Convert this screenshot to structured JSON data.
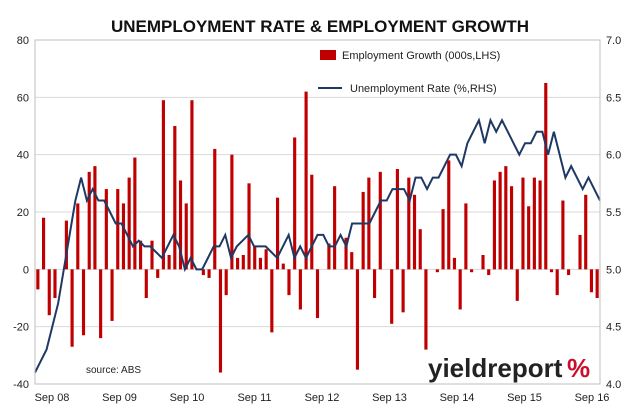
{
  "chart_data": {
    "type": "bar+line",
    "title": "UNEMPLOYMENT RATE & EMPLOYMENT GROWTH",
    "source": "source: ABS",
    "logo": {
      "text": "yieldreport",
      "symbol": "%"
    },
    "x_tick_labels": [
      "Sep 08",
      "Sep 09",
      "Sep 10",
      "Sep 11",
      "Sep 12",
      "Sep 13",
      "Sep 14",
      "Sep 15",
      "Sep 16"
    ],
    "y_left": {
      "min": -40,
      "max": 80,
      "ticks": [
        80,
        60,
        40,
        20,
        0,
        -20,
        -40
      ]
    },
    "y_right": {
      "min": 4.0,
      "max": 7.0,
      "ticks": [
        "7.0",
        "6.5",
        "6.0",
        "5.5",
        "5.0",
        "4.5",
        "4.0"
      ]
    },
    "colors": {
      "bars": "#c00000",
      "line": "#1f3864",
      "grid": "#d9d9d9"
    },
    "series": [
      {
        "name": "Employment Growth (000s,LHS)",
        "type": "bar",
        "values": [
          -7,
          18,
          -16,
          -10,
          0,
          17,
          -27,
          23,
          -23,
          34,
          36,
          -24,
          28,
          -18,
          28,
          23,
          32,
          39,
          10,
          -10,
          10,
          -3,
          59,
          5,
          50,
          31,
          23,
          59,
          0,
          -2,
          -3,
          42,
          -36,
          -9,
          40,
          4,
          5,
          30,
          8,
          4,
          7,
          -22,
          25,
          2,
          -9,
          46,
          -14,
          62,
          33,
          -17,
          0,
          9,
          29,
          0,
          11,
          6,
          -35,
          27,
          32,
          -10,
          34,
          0,
          -19,
          35,
          -15,
          32,
          26,
          14,
          -28,
          0,
          -1,
          21,
          38,
          4,
          -14,
          23,
          -1,
          0,
          5,
          -2,
          31,
          34,
          36,
          29,
          -11,
          32,
          22,
          32,
          31,
          65,
          -1,
          -9,
          24,
          -2,
          0,
          12,
          26,
          -8,
          -10
        ],
        "legend_position": "top-center"
      },
      {
        "name": "Unemployment Rate (%,RHS)",
        "type": "line",
        "axis": "right",
        "values": [
          4.1,
          4.2,
          4.3,
          4.5,
          4.7,
          5.0,
          5.3,
          5.6,
          5.8,
          5.6,
          5.7,
          5.6,
          5.6,
          5.5,
          5.4,
          5.4,
          5.3,
          5.2,
          5.25,
          5.2,
          5.2,
          5.15,
          5.1,
          5.2,
          5.3,
          5.2,
          5.0,
          5.1,
          5.0,
          5.0,
          5.1,
          5.2,
          5.2,
          5.3,
          5.1,
          5.2,
          5.25,
          5.3,
          5.2,
          5.2,
          5.2,
          5.15,
          5.1,
          5.2,
          5.3,
          5.1,
          5.2,
          5.1,
          5.2,
          5.3,
          5.3,
          5.2,
          5.2,
          5.3,
          5.2,
          5.4,
          5.4,
          5.4,
          5.4,
          5.5,
          5.6,
          5.6,
          5.7,
          5.7,
          5.7,
          5.6,
          5.8,
          5.8,
          5.7,
          5.8,
          5.8,
          5.9,
          6.0,
          6.0,
          5.9,
          6.1,
          6.2,
          6.3,
          6.1,
          6.3,
          6.2,
          6.3,
          6.2,
          6.1,
          6.0,
          6.1,
          6.1,
          6.2,
          6.2,
          6.0,
          6.2,
          6.0,
          5.8,
          5.9,
          5.8,
          5.7,
          5.8,
          5.7,
          5.6
        ],
        "legend_position": "top-center"
      }
    ],
    "grid": true,
    "legend_placement": "top-center"
  }
}
